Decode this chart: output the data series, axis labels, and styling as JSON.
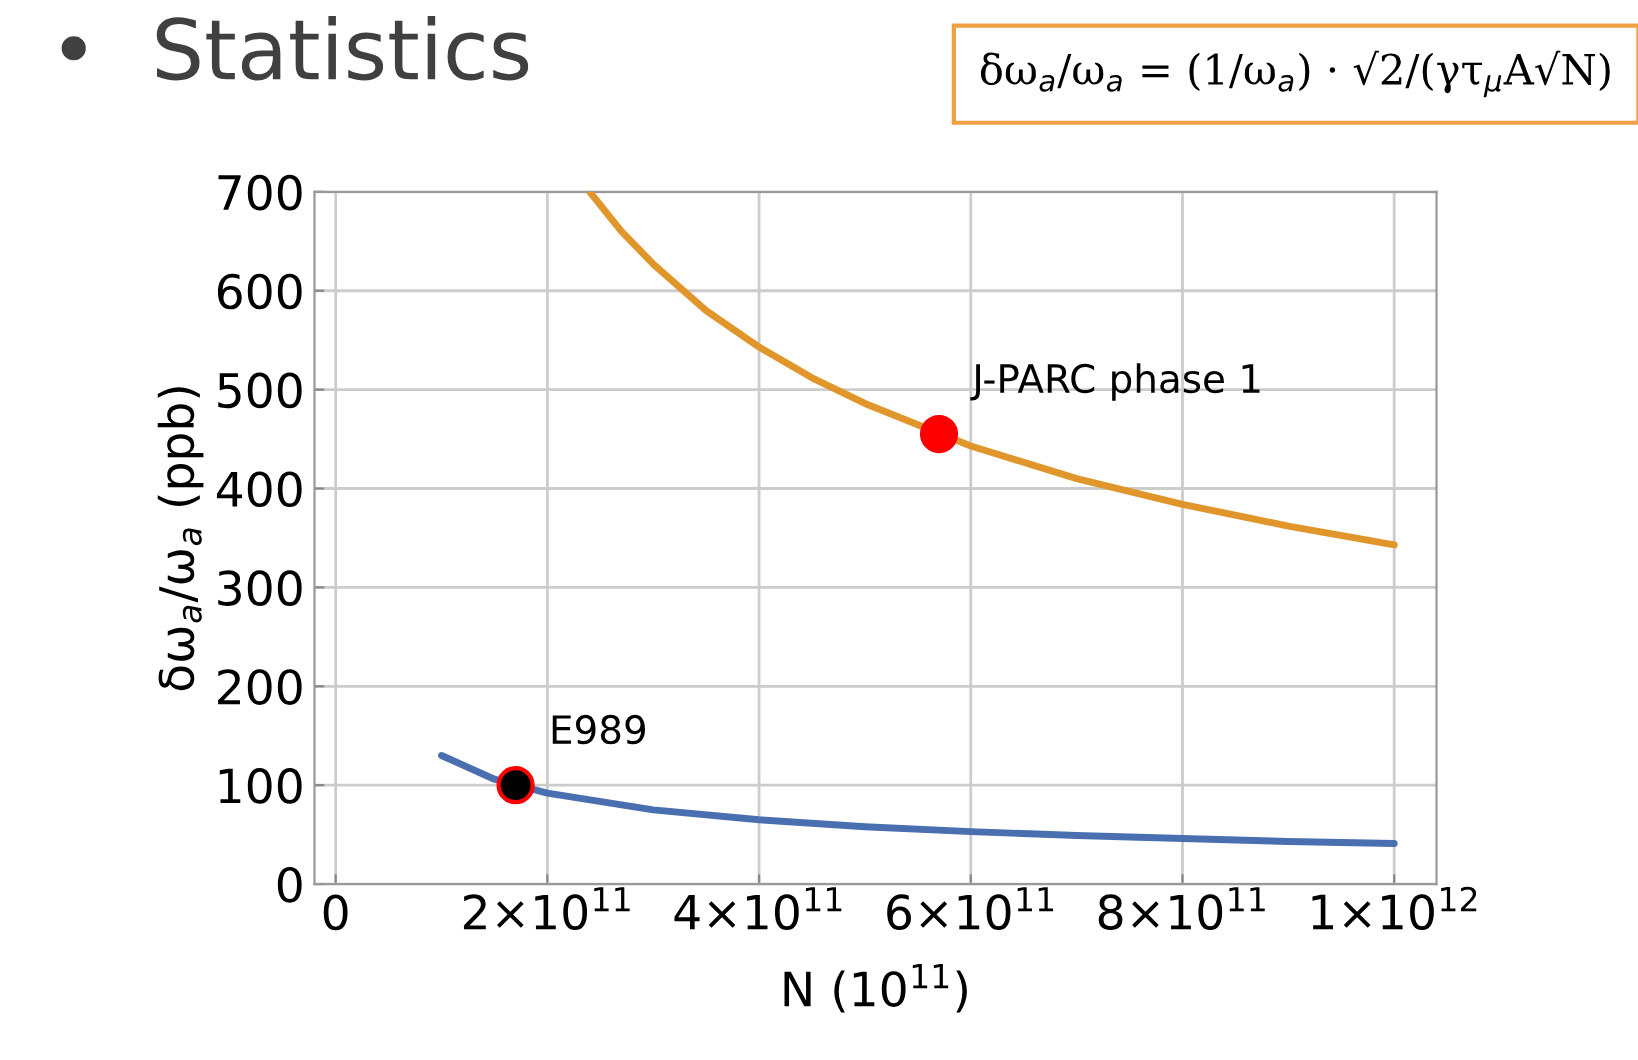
{
  "chart_data": {
    "type": "line",
    "title": "•  Statistics",
    "xlabel": "N (10$^{11}$)",
    "ylabel": "δω$_{a}$/ω$_{a}$ (ppb)",
    "annotations": [
      "δω$_{a}$/ω$_{a}$ = (1/ω$_{a}$) · √2/(γτ$_{μ}$A√N)"
    ],
    "series": [
      {
        "color": "#4a6fb0",
        "x": [
          100000000000.0,
          150000000000.0,
          200000000000.0,
          300000000000.0,
          400000000000.0,
          500000000000.0,
          600000000000.0,
          700000000000.0,
          800000000000.0,
          900000000000.0,
          1000000000000.0
        ],
        "values": [
          130,
          106,
          92,
          75,
          65,
          58,
          53,
          49,
          46,
          43,
          41
        ]
      },
      {
        "color": "#e0962a",
        "x": [
          240000000000.0,
          270000000000.0,
          300000000000.0,
          350000000000.0,
          400000000000.0,
          450000000000.0,
          500000000000.0,
          600000000000.0,
          700000000000.0,
          800000000000.0,
          900000000000.0,
          1000000000000.0
        ],
        "values": [
          700,
          660,
          627,
          580,
          543,
          512,
          486,
          443,
          410,
          384,
          362,
          343
        ]
      },
      {
        "type": "scatter",
        "name": "E989",
        "color": "#000000",
        "x": [
          170000000000.0
        ],
        "values": [
          100
        ]
      },
      {
        "type": "scatter",
        "name": "J-PARC phase 1",
        "color": "#ff0000",
        "x": [
          570000000000.0
        ],
        "values": [
          455
        ]
      }
    ],
    "xlim": [
      -20000000000.0,
      1040000000000.0
    ],
    "ylim": [
      0,
      700
    ],
    "xticks": [
      {
        "value": 0,
        "label": "0"
      },
      {
        "value": 200000000000.0,
        "label": "2×10$^{11}$"
      },
      {
        "value": 400000000000.0,
        "label": "4×10$^{11}$"
      },
      {
        "value": 600000000000.0,
        "label": "6×10$^{11}$"
      },
      {
        "value": 800000000000.0,
        "label": "8×10$^{11}$"
      },
      {
        "value": 1000000000000.0,
        "label": "1×10$^{12}$"
      }
    ],
    "yticks": [
      0,
      100,
      200,
      300,
      400,
      500,
      600,
      700
    ],
    "grid": true
  }
}
